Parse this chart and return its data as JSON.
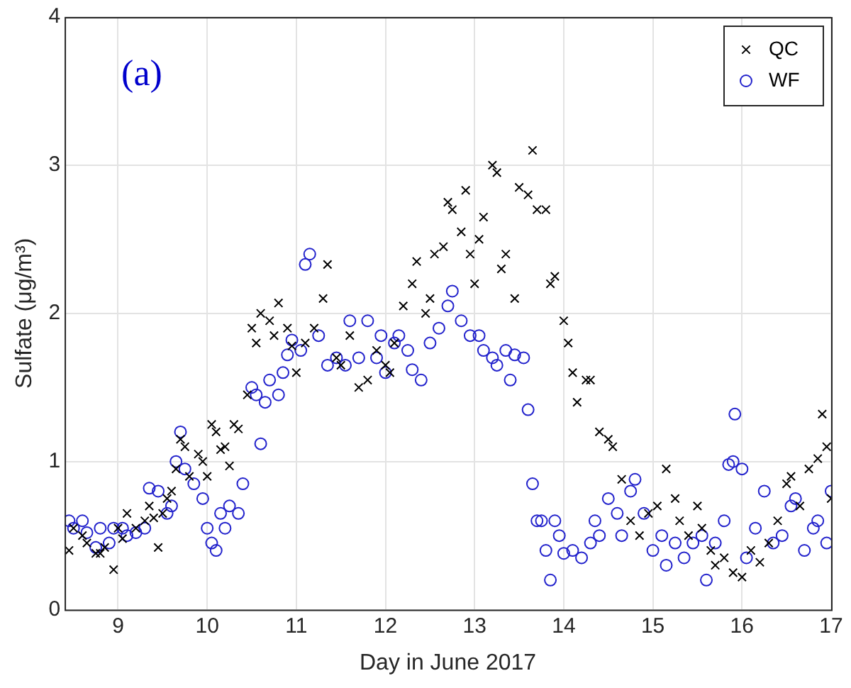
{
  "chart_data": {
    "type": "scatter",
    "xlabel": "Day in June 2017",
    "ylabel": "Sulfate (μg/m³)",
    "annotations": [
      "(a)"
    ],
    "xlim": [
      8.4,
      17
    ],
    "xticks": [
      9,
      10,
      11,
      12,
      13,
      14,
      15,
      16,
      17
    ],
    "ylim": [
      0,
      4
    ],
    "yticks": [
      0,
      1,
      2,
      3,
      4
    ],
    "grid": true,
    "legend": "top right",
    "series": [
      {
        "name": "QC",
        "color": "#000000",
        "marker": "cross",
        "x": [
          8.45,
          8.5,
          8.6,
          8.65,
          8.75,
          8.8,
          8.85,
          8.95,
          9.0,
          9.05,
          9.1,
          9.2,
          9.3,
          9.35,
          9.4,
          9.45,
          9.5,
          9.55,
          9.6,
          9.65,
          9.7,
          9.75,
          9.8,
          9.9,
          9.95,
          10.0,
          10.05,
          10.1,
          10.15,
          10.2,
          10.25,
          10.3,
          10.35,
          10.45,
          10.5,
          10.55,
          10.6,
          10.7,
          10.75,
          10.8,
          10.9,
          10.95,
          11.0,
          11.1,
          11.2,
          11.3,
          11.35,
          11.45,
          11.5,
          11.6,
          11.7,
          11.8,
          11.9,
          12.0,
          12.05,
          12.1,
          12.2,
          12.3,
          12.35,
          12.45,
          12.5,
          12.55,
          12.65,
          12.7,
          12.75,
          12.85,
          12.9,
          12.95,
          13.0,
          13.05,
          13.1,
          13.2,
          13.25,
          13.3,
          13.35,
          13.45,
          13.5,
          13.6,
          13.65,
          13.7,
          13.8,
          13.85,
          13.9,
          14.0,
          14.05,
          14.1,
          14.15,
          14.25,
          14.3,
          14.4,
          14.5,
          14.55,
          14.65,
          14.75,
          14.85,
          14.95,
          15.05,
          15.15,
          15.25,
          15.3,
          15.4,
          15.5,
          15.55,
          15.65,
          15.7,
          15.8,
          15.9,
          16.0,
          16.1,
          16.2,
          16.3,
          16.4,
          16.5,
          16.55,
          16.65,
          16.75,
          16.85,
          16.9,
          16.95,
          17.0
        ],
        "values": [
          0.4,
          0.55,
          0.5,
          0.45,
          0.38,
          0.38,
          0.42,
          0.27,
          0.55,
          0.48,
          0.65,
          0.55,
          0.6,
          0.7,
          0.62,
          0.42,
          0.65,
          0.75,
          0.8,
          0.95,
          1.15,
          1.1,
          0.9,
          1.05,
          1.0,
          0.9,
          1.25,
          1.2,
          1.08,
          1.1,
          0.97,
          1.25,
          1.22,
          1.45,
          1.9,
          1.8,
          2.0,
          1.95,
          1.85,
          2.07,
          1.9,
          1.78,
          1.6,
          1.8,
          1.9,
          2.1,
          2.33,
          1.7,
          1.65,
          1.85,
          1.5,
          1.55,
          1.75,
          1.65,
          1.6,
          1.8,
          2.05,
          2.2,
          2.35,
          2.0,
          2.1,
          2.4,
          2.45,
          2.75,
          2.7,
          2.55,
          2.83,
          2.4,
          2.2,
          2.5,
          2.65,
          3.0,
          2.95,
          2.3,
          2.4,
          2.1,
          2.85,
          2.8,
          3.1,
          2.7,
          2.7,
          2.2,
          2.25,
          1.95,
          1.8,
          1.6,
          1.4,
          1.55,
          1.55,
          1.2,
          1.15,
          1.1,
          0.88,
          0.6,
          0.5,
          0.65,
          0.7,
          0.95,
          0.75,
          0.6,
          0.5,
          0.7,
          0.55,
          0.4,
          0.3,
          0.35,
          0.25,
          0.22,
          0.4,
          0.32,
          0.45,
          0.6,
          0.85,
          0.9,
          0.7,
          0.95,
          1.02,
          1.32,
          1.1,
          0.75
        ]
      },
      {
        "name": "WF",
        "color": "#2222cc",
        "marker": "circle",
        "x": [
          8.45,
          8.5,
          8.6,
          8.65,
          8.75,
          8.8,
          8.9,
          8.95,
          9.05,
          9.1,
          9.2,
          9.3,
          9.35,
          9.45,
          9.55,
          9.6,
          9.65,
          9.7,
          9.75,
          9.85,
          9.95,
          10.0,
          10.05,
          10.1,
          10.15,
          10.2,
          10.25,
          10.35,
          10.4,
          10.5,
          10.55,
          10.6,
          10.65,
          10.7,
          10.8,
          10.85,
          10.9,
          10.95,
          11.05,
          11.1,
          11.15,
          11.25,
          11.35,
          11.45,
          11.55,
          11.6,
          11.7,
          11.8,
          11.9,
          11.95,
          12.0,
          12.1,
          12.15,
          12.25,
          12.3,
          12.4,
          12.5,
          12.6,
          12.7,
          12.75,
          12.85,
          12.95,
          13.05,
          13.1,
          13.2,
          13.25,
          13.35,
          13.4,
          13.45,
          13.55,
          13.6,
          13.65,
          13.7,
          13.75,
          13.8,
          13.85,
          13.9,
          13.95,
          14.0,
          14.1,
          14.2,
          14.3,
          14.35,
          14.4,
          14.5,
          14.6,
          14.65,
          14.75,
          14.8,
          14.9,
          15.0,
          15.1,
          15.15,
          15.25,
          15.35,
          15.45,
          15.55,
          15.6,
          15.7,
          15.8,
          15.85,
          15.9,
          15.92,
          16.0,
          16.05,
          16.15,
          16.25,
          16.35,
          16.45,
          16.55,
          16.6,
          16.7,
          16.8,
          16.85,
          16.95,
          17.0
        ],
        "values": [
          0.6,
          0.55,
          0.6,
          0.52,
          0.42,
          0.55,
          0.45,
          0.55,
          0.55,
          0.5,
          0.52,
          0.55,
          0.82,
          0.8,
          0.65,
          0.7,
          1.0,
          1.2,
          0.95,
          0.85,
          0.75,
          0.55,
          0.45,
          0.4,
          0.65,
          0.55,
          0.7,
          0.65,
          0.85,
          1.5,
          1.45,
          1.12,
          1.4,
          1.55,
          1.45,
          1.6,
          1.72,
          1.82,
          1.75,
          2.33,
          2.4,
          1.85,
          1.65,
          1.7,
          1.65,
          1.95,
          1.7,
          1.95,
          1.7,
          1.85,
          1.6,
          1.8,
          1.85,
          1.75,
          1.62,
          1.55,
          1.8,
          1.9,
          2.05,
          2.15,
          1.95,
          1.85,
          1.85,
          1.75,
          1.7,
          1.65,
          1.75,
          1.55,
          1.72,
          1.7,
          1.35,
          0.85,
          0.6,
          0.6,
          0.4,
          0.2,
          0.6,
          0.5,
          0.38,
          0.4,
          0.35,
          0.45,
          0.6,
          0.5,
          0.75,
          0.65,
          0.5,
          0.8,
          0.88,
          0.65,
          0.4,
          0.5,
          0.3,
          0.45,
          0.35,
          0.45,
          0.5,
          0.2,
          0.45,
          0.6,
          0.98,
          1.0,
          1.32,
          0.95,
          0.35,
          0.55,
          0.8,
          0.45,
          0.5,
          0.7,
          0.75,
          0.4,
          0.55,
          0.6,
          0.45,
          0.8
        ]
      }
    ]
  }
}
